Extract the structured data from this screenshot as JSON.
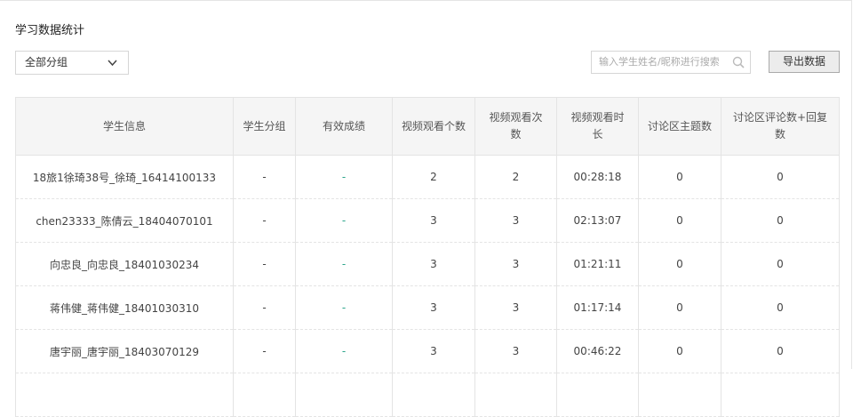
{
  "header": {
    "title": "学习数据统计"
  },
  "toolbar": {
    "group_select": "全部分组",
    "search_placeholder": "输入学生姓名/昵称进行搜索",
    "export_button": "导出数据"
  },
  "table": {
    "columns": [
      "学生信息",
      "学生分组",
      "有效成绩",
      "视频观看个数",
      "视频观看次数",
      "视频观看时长",
      "讨论区主题数",
      "讨论区评论数+回复数"
    ],
    "rows": [
      [
        "18旅1徐琦38号_徐琦_16414100133",
        "-",
        "-",
        2,
        2,
        "00:28:18",
        0,
        0
      ],
      [
        "chen23333_陈倩云_18404070101",
        "-",
        "-",
        3,
        3,
        "02:13:07",
        0,
        0
      ],
      [
        "向忠良_向忠良_18401030234",
        "-",
        "-",
        3,
        3,
        "01:21:11",
        0,
        0
      ],
      [
        "蒋伟健_蒋伟健_18401030310",
        "-",
        "-",
        3,
        3,
        "01:17:14",
        0,
        0
      ],
      [
        "唐宇丽_唐宇丽_18403070129",
        "-",
        "-",
        3,
        3,
        "00:46:22",
        0,
        0
      ]
    ]
  }
}
